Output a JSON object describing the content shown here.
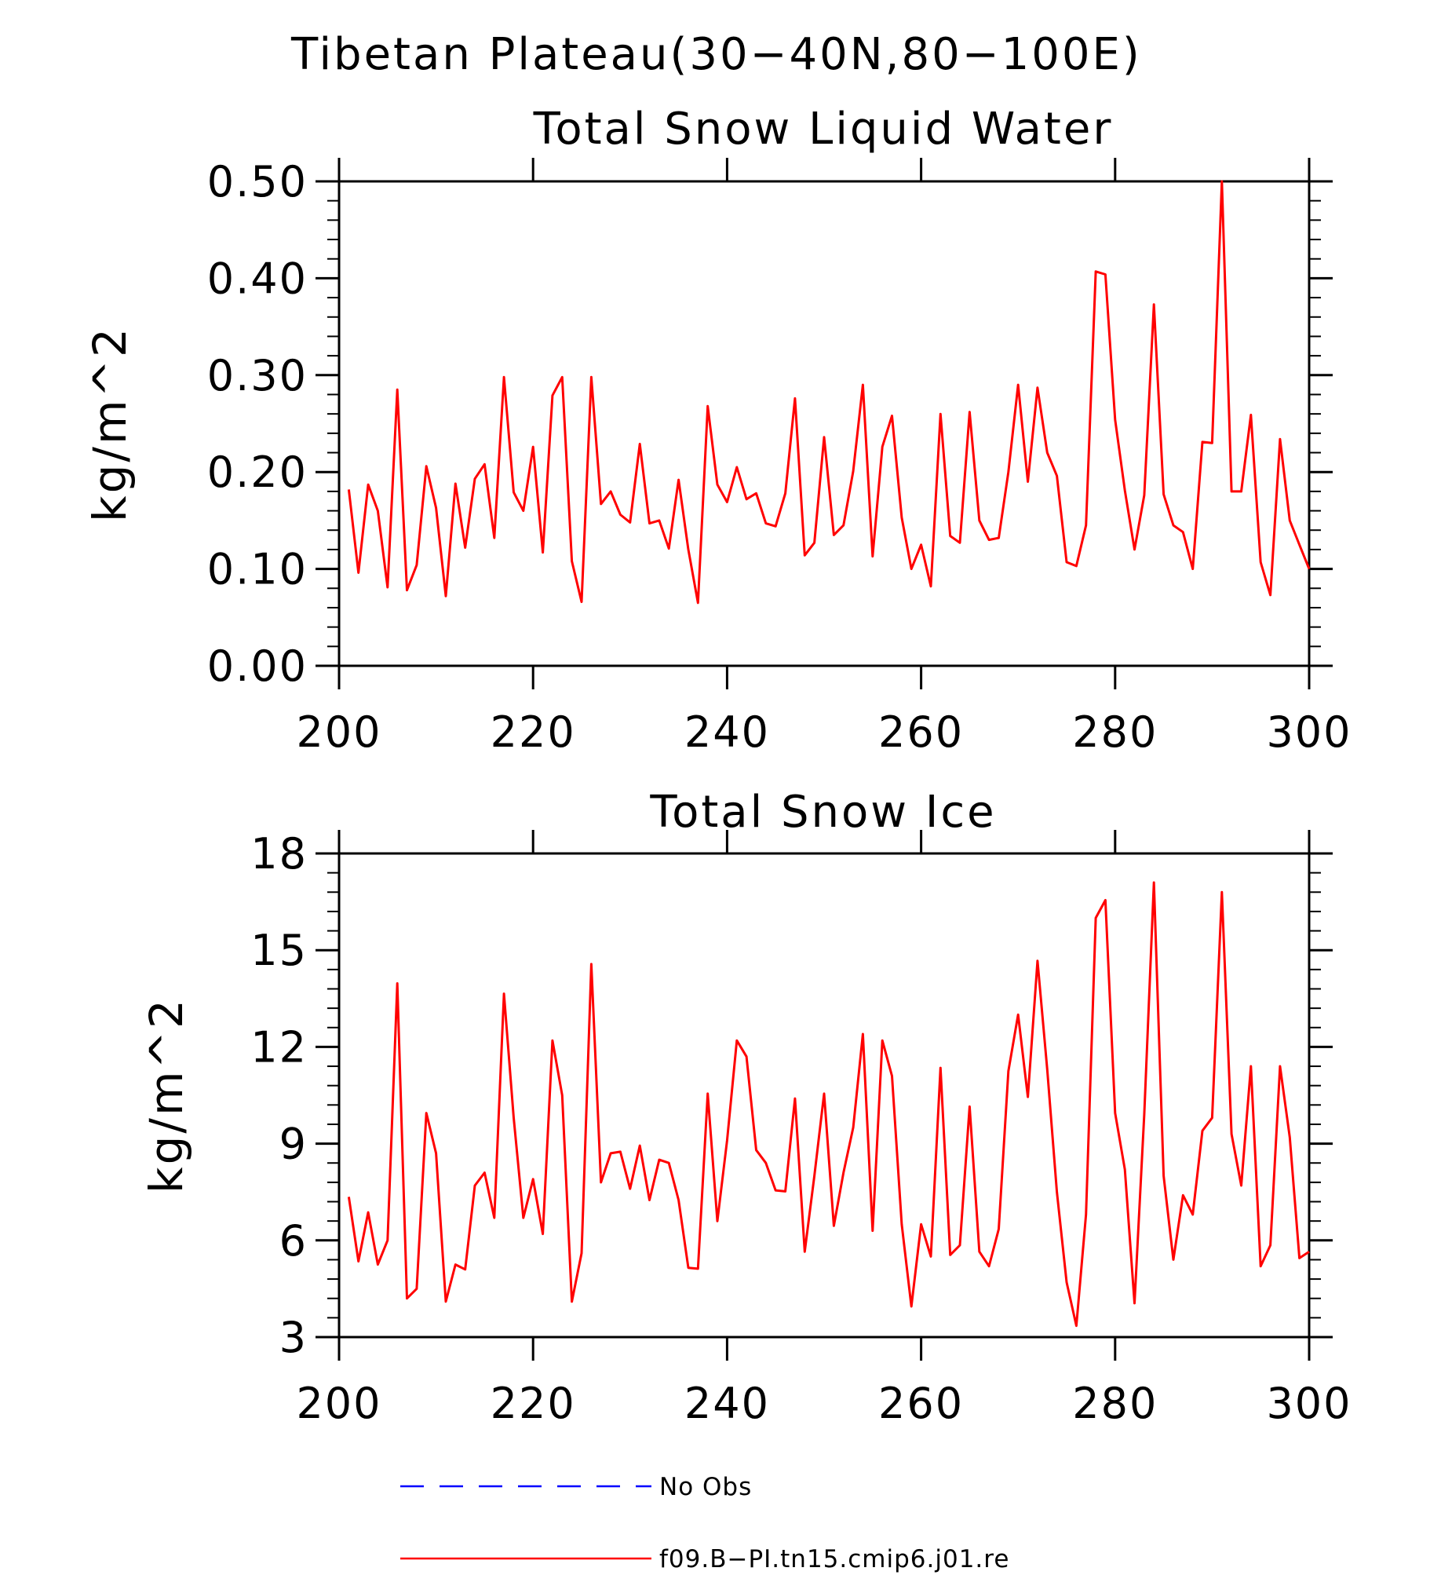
{
  "title": "Tibetan Plateau(30−40N,80−100E)",
  "colors": {
    "model": "#ff0000",
    "obs": "#0000ff",
    "axis": "#000000"
  },
  "chart_data": [
    {
      "type": "line",
      "title": "Total Snow Liquid Water",
      "xlabel": "",
      "ylabel": "kg/m^2",
      "xlim": [
        200,
        300
      ],
      "ylim": [
        0,
        0.5
      ],
      "x_ticks": [
        200,
        220,
        240,
        260,
        280,
        300
      ],
      "x_tick_labels": [
        "200",
        "220",
        "240",
        "260",
        "280",
        "300"
      ],
      "y_ticks": [
        0,
        0.1,
        0.2,
        0.3,
        0.4,
        0.5
      ],
      "y_tick_labels": [
        "0.00",
        "0.10",
        "0.20",
        "0.30",
        "0.40",
        "0.50"
      ],
      "grid": false,
      "series": [
        {
          "name": "f09.B−PI.tn15.cmip6.j01.re",
          "color": "#ff0000",
          "x_start": 201,
          "x_step": 1,
          "values": [
            0.182,
            0.096,
            0.187,
            0.16,
            0.081,
            0.285,
            0.078,
            0.104,
            0.206,
            0.163,
            0.072,
            0.188,
            0.122,
            0.193,
            0.208,
            0.132,
            0.298,
            0.179,
            0.16,
            0.226,
            0.117,
            0.279,
            0.298,
            0.108,
            0.066,
            0.298,
            0.167,
            0.18,
            0.156,
            0.148,
            0.229,
            0.147,
            0.15,
            0.121,
            0.192,
            0.12,
            0.065,
            0.268,
            0.187,
            0.169,
            0.205,
            0.172,
            0.178,
            0.147,
            0.144,
            0.178,
            0.276,
            0.114,
            0.127,
            0.236,
            0.135,
            0.145,
            0.201,
            0.29,
            0.113,
            0.226,
            0.258,
            0.153,
            0.1,
            0.125,
            0.082,
            0.26,
            0.134,
            0.127,
            0.262,
            0.15,
            0.13,
            0.132,
            0.2,
            0.29,
            0.19,
            0.287,
            0.22,
            0.196,
            0.107,
            0.103,
            0.145,
            0.407,
            0.404,
            0.254,
            0.181,
            0.12,
            0.176,
            0.373,
            0.177,
            0.145,
            0.138,
            0.1,
            0.231,
            0.23,
            0.5,
            0.18,
            0.18,
            0.259,
            0.107,
            0.073,
            0.234,
            0.15,
            0.125,
            0.1
          ]
        }
      ]
    },
    {
      "type": "line",
      "title": "Total Snow Ice",
      "xlabel": "",
      "ylabel": "kg/m^2",
      "xlim": [
        200,
        300
      ],
      "ylim": [
        3,
        18
      ],
      "x_ticks": [
        200,
        220,
        240,
        260,
        280,
        300
      ],
      "x_tick_labels": [
        "200",
        "220",
        "240",
        "260",
        "280",
        "300"
      ],
      "y_ticks": [
        3,
        6,
        9,
        12,
        15,
        18
      ],
      "y_tick_labels": [
        "3",
        "6",
        "9",
        "12",
        "15",
        "18"
      ],
      "grid": false,
      "series": [
        {
          "name": "f09.B−PI.tn15.cmip6.j01.re",
          "color": "#ff0000",
          "x_start": 201,
          "x_step": 1,
          "values": [
            7.35,
            5.35,
            6.87,
            5.25,
            6.0,
            13.97,
            4.2,
            4.5,
            9.95,
            8.7,
            4.1,
            5.25,
            5.1,
            7.7,
            8.1,
            6.7,
            13.65,
            9.8,
            6.7,
            7.9,
            6.2,
            12.2,
            10.5,
            4.1,
            5.6,
            14.57,
            7.8,
            8.7,
            8.75,
            7.6,
            8.94,
            7.25,
            8.5,
            8.4,
            7.25,
            5.15,
            5.12,
            10.55,
            6.6,
            9.1,
            12.2,
            11.7,
            8.8,
            8.4,
            7.55,
            7.52,
            10.4,
            5.65,
            8.0,
            10.55,
            6.45,
            8.1,
            9.5,
            12.4,
            6.3,
            12.2,
            11.1,
            6.5,
            3.95,
            6.5,
            5.5,
            11.35,
            5.55,
            5.85,
            10.15,
            5.65,
            5.2,
            6.35,
            11.25,
            13.0,
            10.45,
            14.67,
            11.3,
            7.5,
            4.7,
            3.35,
            6.8,
            16.0,
            16.55,
            9.95,
            8.2,
            4.05,
            9.9,
            17.1,
            8.0,
            5.4,
            7.4,
            6.8,
            9.4,
            9.8,
            16.8,
            9.3,
            7.7,
            11.4,
            5.2,
            5.85,
            11.4,
            9.2,
            5.45,
            5.65
          ]
        }
      ]
    }
  ],
  "legend": {
    "placement": "bottom",
    "items": [
      {
        "label": "No Obs",
        "color": "#0000ff",
        "style": "dashed"
      },
      {
        "label": "f09.B−PI.tn15.cmip6.j01.re",
        "color": "#ff0000",
        "style": "solid"
      }
    ]
  }
}
